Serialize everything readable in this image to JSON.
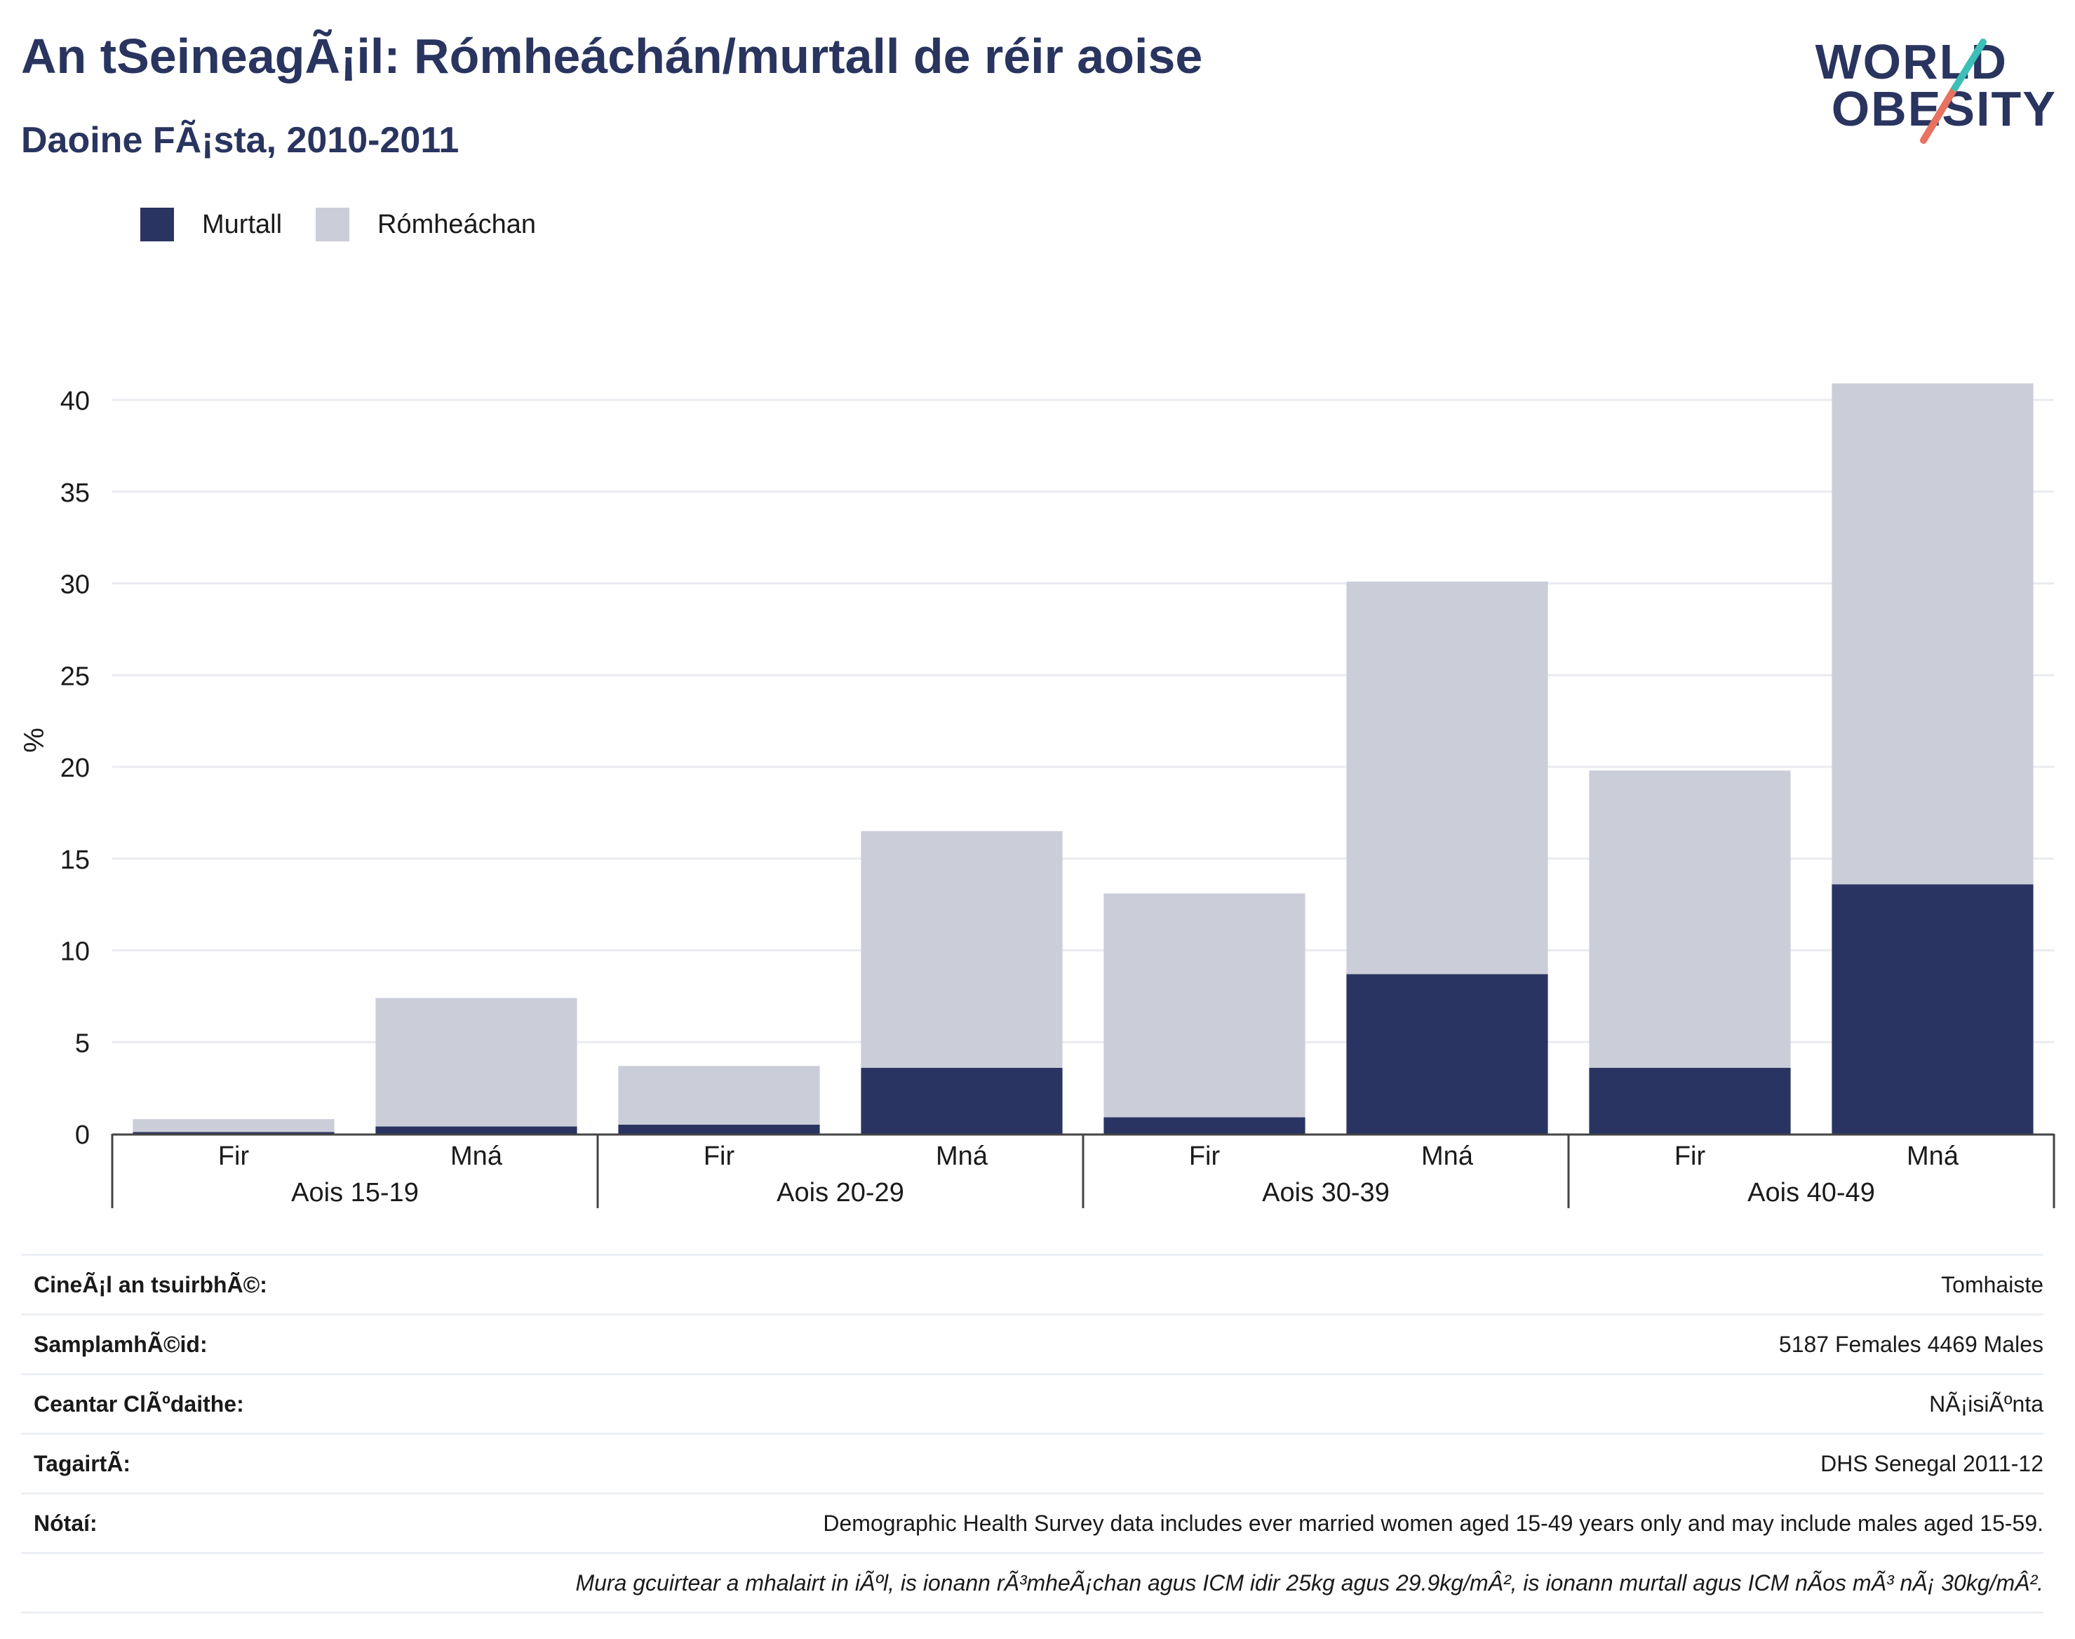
{
  "header": {
    "title": "An tSeineagÃ¡il: Rómheáchán/murtall de réir aoise",
    "subtitle": "Daoine FÃ¡sta, 2010-2011"
  },
  "logo": {
    "line1": "WORLD",
    "line2": "OBESITY"
  },
  "colors": {
    "obese": "#293462",
    "overweight": "#cbcdd8",
    "text": "#29345f",
    "axis": "#444444",
    "grid": "#e9ebf0"
  },
  "chart_data": {
    "type": "bar",
    "stacked": true,
    "ylabel": "%",
    "ylim": [
      0,
      42
    ],
    "yticks": [
      0,
      5,
      10,
      15,
      20,
      25,
      30,
      35,
      40
    ],
    "grid": true,
    "legend_position": "top-left",
    "groups": [
      "Aois 15-19",
      "Aois 20-29",
      "Aois 30-39",
      "Aois 40-49"
    ],
    "categories": [
      "Fir",
      "Mná",
      "Fir",
      "Mná",
      "Fir",
      "Mná",
      "Fir",
      "Mná"
    ],
    "series": [
      {
        "name": "Murtall",
        "values": [
          0.1,
          0.4,
          0.5,
          3.6,
          0.9,
          8.7,
          3.6,
          13.6
        ]
      },
      {
        "name": "Rómheáchan",
        "values": [
          0.7,
          7.0,
          3.2,
          12.9,
          12.2,
          21.4,
          16.2,
          27.3
        ]
      }
    ]
  },
  "info": {
    "rows": [
      {
        "label": "CineÃ¡l an tsuirbhÃ©:",
        "value": "Tomhaiste"
      },
      {
        "label": "SamplamhÃ©id:",
        "value": "5187 Females 4469 Males"
      },
      {
        "label": "Ceantar ClÃºdaithe:",
        "value": "NÃ¡isiÃºnta"
      },
      {
        "label": "TagairtÃ:",
        "value": "DHS Senegal 2011-12"
      },
      {
        "label": "Nótaí:",
        "value": "Demographic Health Survey data includes ever married women aged 15-49 years only and may include males aged 15-59."
      }
    ],
    "footnote": "Mura gcuirtear a mhalairt in iÃºl, is ionann rÃ³mheÃ¡chan agus ICM idir 25kg agus 29.9kg/mÂ², is ionann murtall agus ICM nÃ­os mÃ³ nÃ¡ 30kg/mÂ²."
  }
}
